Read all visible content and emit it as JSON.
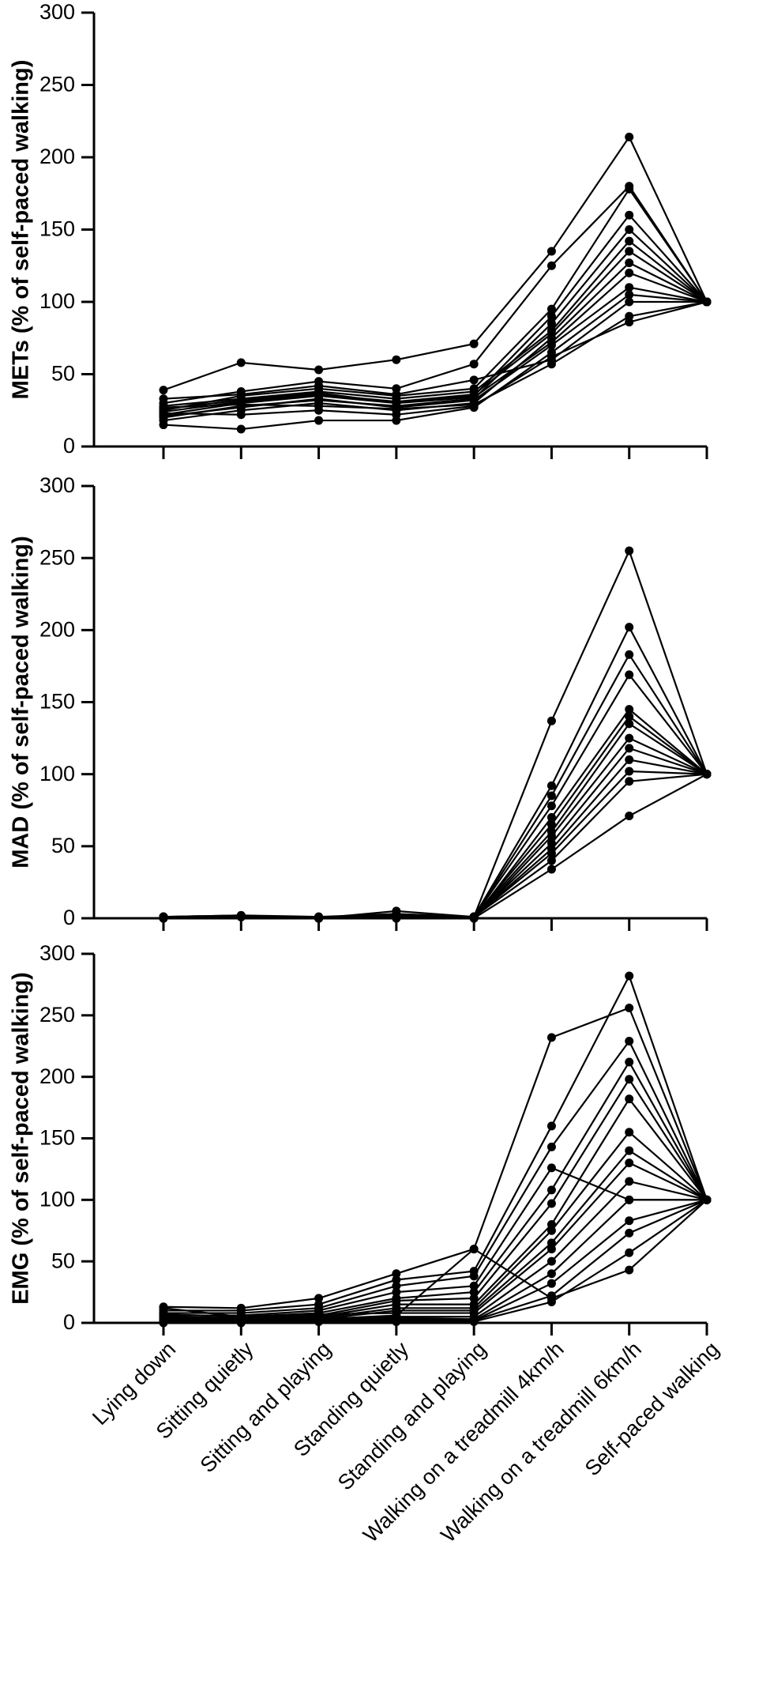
{
  "chart_data": [
    {
      "type": "line",
      "ylabel": "METs (% of self-paced walking)",
      "color": "#000000",
      "categories": [
        null,
        null,
        null,
        null,
        null,
        null,
        null,
        null
      ],
      "ylim": [
        0,
        300
      ],
      "yticks": [
        0,
        50,
        100,
        150,
        200,
        250,
        300
      ],
      "series": [
        {
          "values": [
            39,
            58,
            53,
            60,
            71,
            135,
            214,
            100
          ]
        },
        {
          "values": [
            30,
            38,
            45,
            40,
            57,
            125,
            180,
            100
          ]
        },
        {
          "values": [
            25,
            35,
            40,
            35,
            40,
            95,
            178,
            100
          ]
        },
        {
          "values": [
            22,
            30,
            35,
            30,
            35,
            90,
            160,
            100
          ]
        },
        {
          "values": [
            20,
            28,
            32,
            28,
            33,
            85,
            150,
            100
          ]
        },
        {
          "values": [
            28,
            33,
            38,
            33,
            38,
            80,
            142,
            100
          ]
        },
        {
          "values": [
            24,
            31,
            36,
            31,
            36,
            78,
            135,
            100
          ]
        },
        {
          "values": [
            18,
            25,
            30,
            25,
            30,
            75,
            127,
            100
          ]
        },
        {
          "values": [
            26,
            32,
            37,
            30,
            34,
            72,
            120,
            100
          ]
        },
        {
          "values": [
            21,
            27,
            33,
            27,
            32,
            70,
            110,
            100
          ]
        },
        {
          "values": [
            15,
            12,
            18,
            18,
            27,
            65,
            105,
            100
          ]
        },
        {
          "values": [
            33,
            36,
            42,
            36,
            46,
            60,
            100,
            100
          ]
        },
        {
          "values": [
            27,
            29,
            28,
            26,
            29,
            57,
            90,
            100
          ]
        },
        {
          "values": [
            23,
            22,
            25,
            22,
            28,
            62,
            86,
            100
          ]
        }
      ]
    },
    {
      "type": "line",
      "ylabel": "MAD (% of self-paced walking)",
      "color": "#000000",
      "categories": [
        null,
        null,
        null,
        null,
        null,
        null,
        null,
        null
      ],
      "ylim": [
        0,
        300
      ],
      "yticks": [
        0,
        50,
        100,
        150,
        200,
        250,
        300
      ],
      "series": [
        {
          "values": [
            1,
            2,
            0,
            5,
            1,
            137,
            255,
            100
          ]
        },
        {
          "values": [
            1,
            2,
            1,
            3,
            1,
            92,
            202,
            100
          ]
        },
        {
          "values": [
            1,
            1,
            0,
            2,
            1,
            85,
            183,
            100
          ]
        },
        {
          "values": [
            0,
            1,
            0,
            1,
            1,
            78,
            169,
            100
          ]
        },
        {
          "values": [
            1,
            1,
            0,
            1,
            0,
            70,
            145,
            100
          ]
        },
        {
          "values": [
            0,
            1,
            0,
            1,
            1,
            65,
            140,
            100
          ]
        },
        {
          "values": [
            1,
            1,
            1,
            1,
            1,
            60,
            135,
            100
          ]
        },
        {
          "values": [
            0,
            1,
            0,
            0,
            0,
            57,
            125,
            100
          ]
        },
        {
          "values": [
            1,
            1,
            0,
            1,
            1,
            52,
            118,
            100
          ]
        },
        {
          "values": [
            0,
            1,
            0,
            1,
            1,
            48,
            110,
            100
          ]
        },
        {
          "values": [
            1,
            1,
            0,
            0,
            1,
            45,
            102,
            100
          ]
        },
        {
          "values": [
            0,
            1,
            0,
            1,
            1,
            40,
            95,
            100
          ]
        },
        {
          "values": [
            1,
            1,
            0,
            1,
            0,
            34,
            71,
            100
          ]
        }
      ]
    },
    {
      "type": "line",
      "ylabel": "EMG (% of self-paced walking)",
      "color": "#000000",
      "categories": [
        "Lying down",
        "Sitting quietly",
        "Sitting and playing",
        "Standing quietly",
        "Standing and playing",
        "Walking on a treadmill 4km/h",
        "Walking on a treadmill 6km/h",
        "Self-paced walking"
      ],
      "ylim": [
        0,
        300
      ],
      "yticks": [
        0,
        50,
        100,
        150,
        200,
        250,
        300
      ],
      "series": [
        {
          "values": [
            13,
            12,
            20,
            40,
            60,
            232,
            256,
            100
          ]
        },
        {
          "values": [
            10,
            10,
            15,
            35,
            42,
            160,
            282,
            100
          ]
        },
        {
          "values": [
            8,
            8,
            12,
            30,
            38,
            143,
            229,
            100
          ]
        },
        {
          "values": [
            6,
            6,
            10,
            25,
            30,
            126,
            100,
            100
          ]
        },
        {
          "values": [
            12,
            5,
            8,
            20,
            25,
            108,
            212,
            100
          ]
        },
        {
          "values": [
            5,
            4,
            6,
            18,
            20,
            97,
            198,
            100
          ]
        },
        {
          "values": [
            4,
            3,
            5,
            15,
            15,
            80,
            182,
            100
          ]
        },
        {
          "values": [
            3,
            2,
            4,
            12,
            12,
            75,
            155,
            100
          ]
        },
        {
          "values": [
            2,
            2,
            3,
            10,
            10,
            65,
            140,
            100
          ]
        },
        {
          "values": [
            7,
            5,
            7,
            8,
            8,
            60,
            130,
            100
          ]
        },
        {
          "values": [
            1,
            1,
            2,
            5,
            5,
            50,
            115,
            100
          ]
        },
        {
          "values": [
            3,
            3,
            4,
            4,
            3,
            40,
            100,
            100
          ]
        },
        {
          "values": [
            2,
            1,
            2,
            3,
            2,
            32,
            83,
            100
          ]
        },
        {
          "values": [
            1,
            1,
            1,
            2,
            2,
            22,
            73,
            100
          ]
        },
        {
          "values": [
            0,
            0,
            1,
            1,
            1,
            17,
            57,
            100
          ]
        },
        {
          "values": [
            4,
            2,
            3,
            6,
            60,
            20,
            43,
            100
          ]
        }
      ]
    }
  ]
}
